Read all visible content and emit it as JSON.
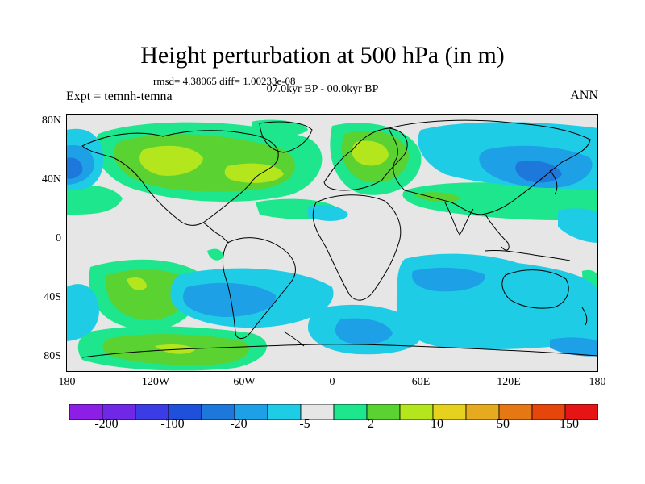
{
  "title": "Height perturbation at 500 hPa (in m)",
  "stats": "rmsd= 4.38065 diff= 1.00233e-08",
  "period": "07.0kyr BP - 00.0kyr BP",
  "experiment": "Expt = temnh-temna",
  "season": "ANN",
  "map": {
    "lat_ticks": [
      "80N",
      "40N",
      "0",
      "40S",
      "80S"
    ],
    "lon_ticks": [
      "180",
      "120W",
      "60W",
      "0",
      "60E",
      "120E",
      "180"
    ],
    "colors": {
      "bg": "#e6e6e6",
      "pos1": "#1ee68c",
      "pos2": "#5ad232",
      "pos3": "#b4e61e",
      "neg1": "#1ecce6",
      "neg2": "#1ea0e6",
      "neg3": "#1e78dc",
      "land": "#000000"
    }
  },
  "colorbar": {
    "colors": [
      "#8c1ee6",
      "#6e28e6",
      "#3c3ce6",
      "#1e50dc",
      "#1e78dc",
      "#1ea0e6",
      "#1ecce6",
      "#e6e6e6",
      "#1ee68c",
      "#5ad232",
      "#b4e61e",
      "#e6d21e",
      "#e6aa1e",
      "#e67814",
      "#e6460a",
      "#e61414"
    ],
    "labels": [
      "-200",
      "-100",
      "-20",
      "-5",
      "2",
      "10",
      "50",
      "150"
    ]
  }
}
